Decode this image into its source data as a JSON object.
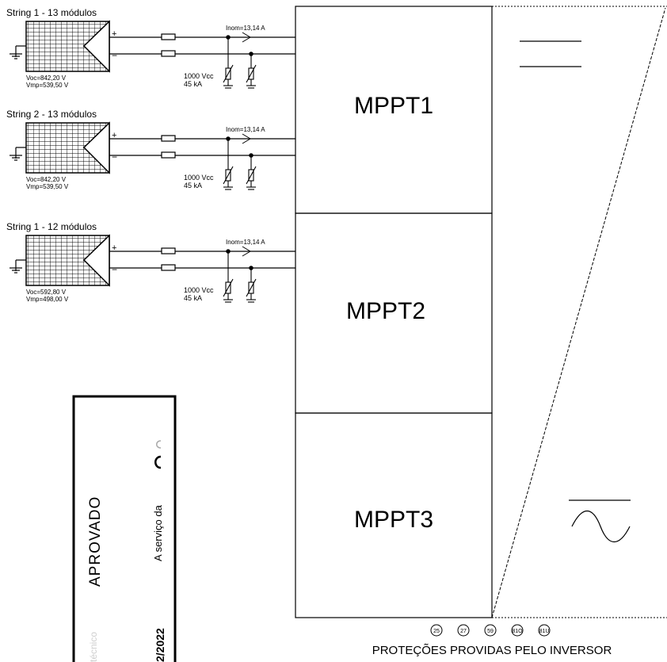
{
  "strings": [
    {
      "title": "String 1 - 13 módulos",
      "voc": "Voc=842,20  V",
      "vmp": "Vmp=539,50  V",
      "inom": "Inom=13,14  A",
      "spd_v": "1000  Vcc",
      "spd_i": "45  kA",
      "plus": "+",
      "minus": "−"
    },
    {
      "title": "String 2 - 13 módulos",
      "voc": "Voc=842,20  V",
      "vmp": "Vmp=539,50  V",
      "inom": "Inom=13,14  A",
      "spd_v": "1000  Vcc",
      "spd_i": "45  kA",
      "plus": "+",
      "minus": "−"
    },
    {
      "title": "String 1 - 12 módulos",
      "voc": "Voc=592,80  V",
      "vmp": "Vmp=498,00  V",
      "inom": "Inom=13,14  A",
      "spd_v": "1000  Vcc",
      "spd_i": "45  kA",
      "plus": "+",
      "minus": "−"
    }
  ],
  "mppts": [
    "MPPT1",
    "MPPT2",
    "MPPT3"
  ],
  "stamp": {
    "status": "APROVADO",
    "service": "A serviço da",
    "date_fragment": "2/2022",
    "faded_text": "técnico"
  },
  "protections": {
    "codes": [
      "25",
      "27",
      "59",
      "81O",
      "81U"
    ],
    "caption": "PROTEÇÕES PROVIDAS PELO INVERSOR"
  },
  "inverter_symbols": {
    "dc": "dc-symbol-icon",
    "ac": "sine-wave-icon"
  }
}
